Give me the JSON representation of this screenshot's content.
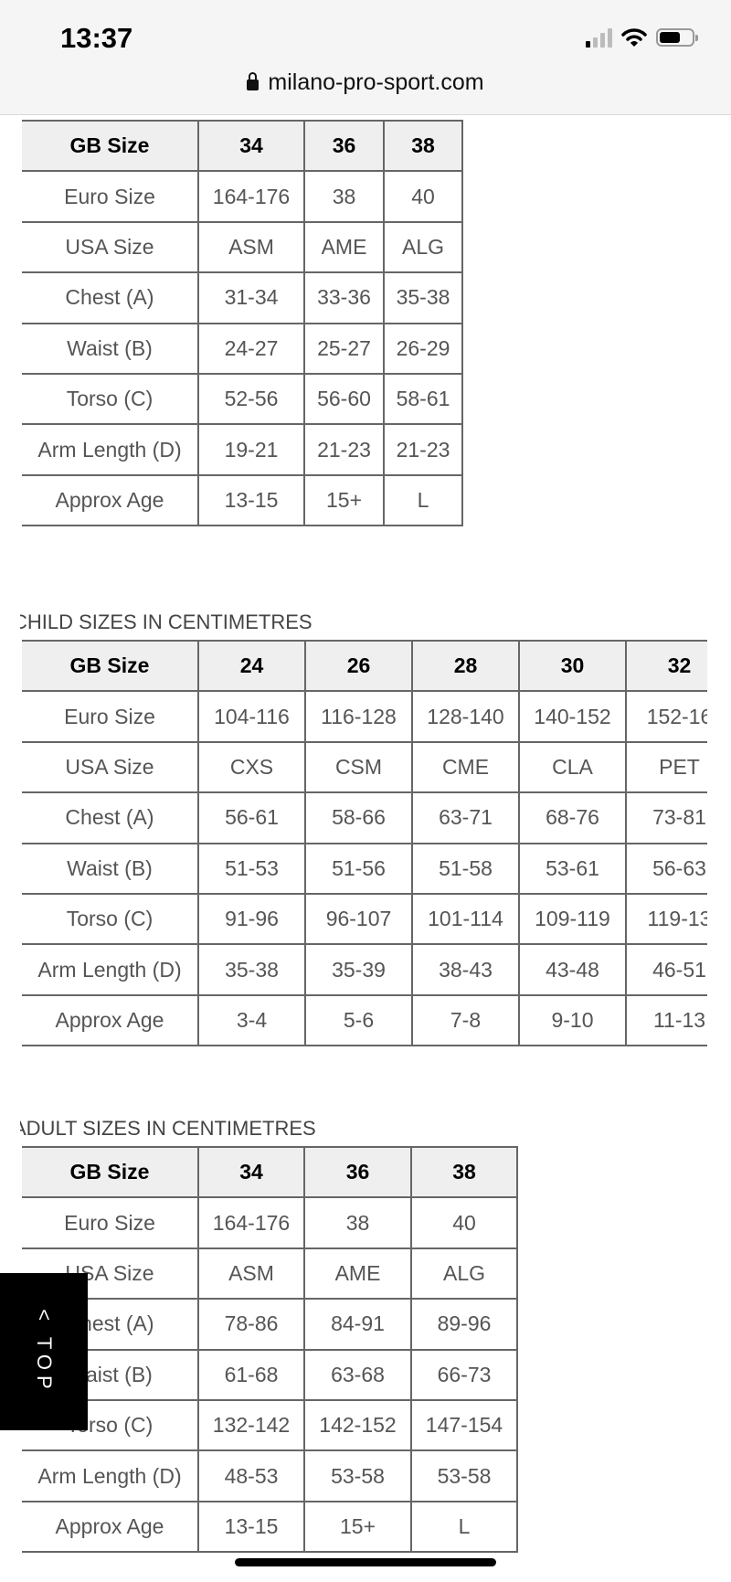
{
  "status_bar": {
    "time": "13:37",
    "icons": [
      "signal-icon",
      "wifi-icon",
      "battery-icon"
    ]
  },
  "browser": {
    "url": "milano-pro-sport.com",
    "lock_icon": "lock-icon"
  },
  "table_top": {
    "header": [
      "GB Size",
      "34",
      "36",
      "38"
    ],
    "rows": [
      [
        "Euro Size",
        "164-176",
        "38",
        "40"
      ],
      [
        "USA Size",
        "ASM",
        "AME",
        "ALG"
      ],
      [
        "Chest (A)",
        "31-34",
        "33-36",
        "35-38"
      ],
      [
        "Waist (B)",
        "24-27",
        "25-27",
        "26-29"
      ],
      [
        "Torso (C)",
        "52-56",
        "56-60",
        "58-61"
      ],
      [
        "Arm Length (D)",
        "19-21",
        "21-23",
        "21-23"
      ],
      [
        "Approx Age",
        "13-15",
        "15+",
        "L"
      ]
    ]
  },
  "child_section": {
    "title": "CHILD SIZES IN CENTIMETRES",
    "header": [
      "GB Size",
      "24",
      "26",
      "28",
      "30",
      "32"
    ],
    "rows": [
      [
        "Euro Size",
        "104-116",
        "116-128",
        "128-140",
        "140-152",
        "152-16"
      ],
      [
        "USA Size",
        "CXS",
        "CSM",
        "CME",
        "CLA",
        "PET"
      ],
      [
        "Chest (A)",
        "56-61",
        "58-66",
        "63-71",
        "68-76",
        "73-81"
      ],
      [
        "Waist (B)",
        "51-53",
        "51-56",
        "51-58",
        "53-61",
        "56-63"
      ],
      [
        "Torso (C)",
        "91-96",
        "96-107",
        "101-114",
        "109-119",
        "119-13"
      ],
      [
        "Arm Length (D)",
        "35-38",
        "35-39",
        "38-43",
        "43-48",
        "46-51"
      ],
      [
        "Approx Age",
        "3-4",
        "5-6",
        "7-8",
        "9-10",
        "11-13"
      ]
    ]
  },
  "adult_section": {
    "title": "ADULT SIZES IN CENTIMETRES",
    "header": [
      "GB Size",
      "34",
      "36",
      "38"
    ],
    "rows": [
      [
        "Euro Size",
        "164-176",
        "38",
        "40"
      ],
      [
        "USA Size",
        "ASM",
        "AME",
        "ALG"
      ],
      [
        "Chest (A)",
        "78-86",
        "84-91",
        "89-96"
      ],
      [
        "Waist (B)",
        "61-68",
        "63-68",
        "66-73"
      ],
      [
        "Torso (C)",
        "132-142",
        "142-152",
        "147-154"
      ],
      [
        "Arm Length (D)",
        "48-53",
        "53-58",
        "53-58"
      ],
      [
        "Approx Age",
        "13-15",
        "15+",
        "L"
      ]
    ]
  },
  "back_to_top": {
    "label": "< TOP"
  }
}
